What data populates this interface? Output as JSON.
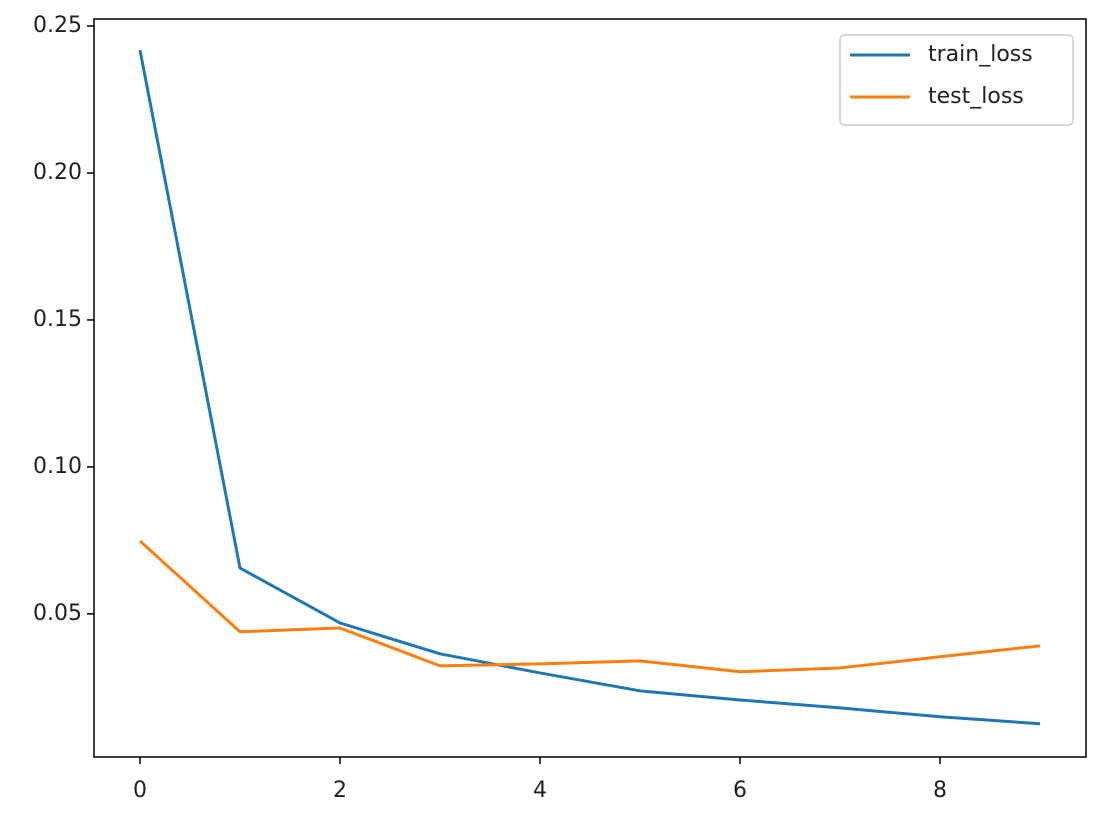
{
  "chart_data": {
    "type": "line",
    "x": [
      0,
      1,
      2,
      3,
      4,
      5,
      6,
      7,
      8,
      9
    ],
    "series": [
      {
        "name": "train_loss",
        "color": "#1f77b4",
        "values": [
          0.2418,
          0.0656,
          0.0469,
          0.0364,
          0.0299,
          0.0238,
          0.0207,
          0.018,
          0.015,
          0.0126
        ]
      },
      {
        "name": "test_loss",
        "color": "#ff7f0e",
        "values": [
          0.0748,
          0.0439,
          0.0452,
          0.0323,
          0.033,
          0.034,
          0.0303,
          0.0316,
          0.0354,
          0.0391
        ]
      }
    ],
    "xlim": [
      -0.46,
      9.46
    ],
    "xticks": [
      0,
      2,
      4,
      6,
      8
    ],
    "ylim": [
      0.0013,
      0.2524
    ],
    "yticks": [
      0.05,
      {
        "value": 0.1,
        "label": "0.10"
      },
      0.15,
      {
        "value": 0.2,
        "label": "0.20"
      },
      0.25
    ],
    "grid": false,
    "legend": "upper right"
  }
}
